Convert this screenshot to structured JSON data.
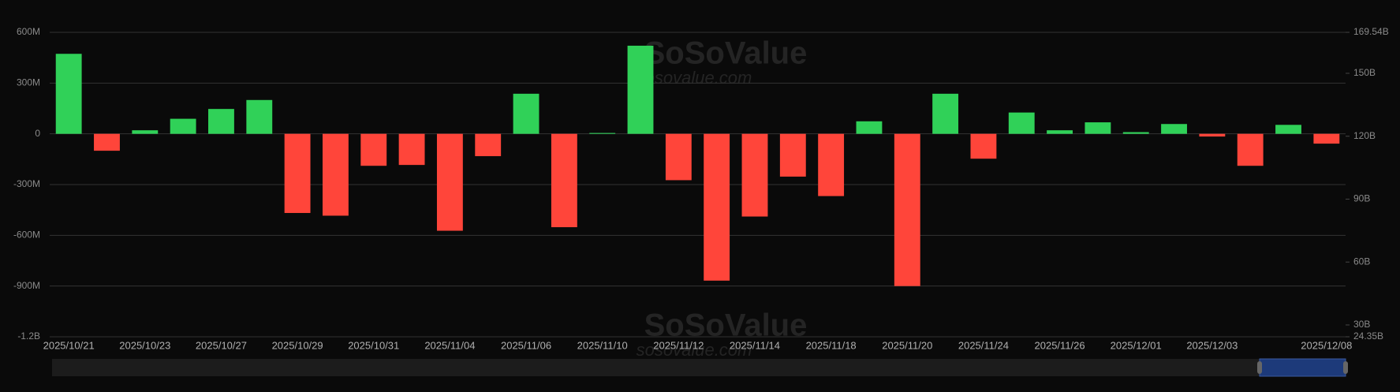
{
  "chart_data": {
    "type": "bar",
    "watermark": {
      "name": "SoSoValue",
      "url": "sosovalue.com"
    },
    "categories": [
      "2025/10/21",
      null,
      "2025/10/23",
      null,
      "2025/10/27",
      null,
      "2025/10/29",
      null,
      "2025/10/31",
      null,
      "2025/11/04",
      null,
      "2025/11/06",
      null,
      "2025/11/10",
      null,
      "2025/11/12",
      null,
      "2025/11/14",
      null,
      "2025/11/18",
      null,
      "2025/11/20",
      null,
      "2025/11/24",
      null,
      "2025/11/26",
      null,
      "2025/12/01",
      null,
      "2025/12/03",
      null,
      null,
      "2025/12/08"
    ],
    "values": [
      473,
      -100,
      21,
      89,
      147,
      200,
      -468,
      -484,
      -189,
      -184,
      -573,
      -132,
      237,
      -552,
      5,
      521,
      -274,
      -868,
      -489,
      -253,
      -368,
      74,
      -900,
      237,
      -147,
      126,
      21,
      68,
      10,
      58,
      -16,
      -189,
      53,
      -58
    ],
    "positive_color": "#30d158",
    "negative_color": "#ff453a",
    "ylim": [
      -1200,
      600
    ],
    "yticks": [
      {
        "value": 600,
        "label": "600M"
      },
      {
        "value": 300,
        "label": "300M"
      },
      0,
      {
        "value": -300,
        "label": "-300M"
      },
      {
        "value": -600,
        "label": "-600M"
      },
      {
        "value": -900,
        "label": "-900M"
      },
      {
        "value": -1200,
        "label": "-1.2B"
      }
    ],
    "y2lim": [
      24.35,
      169.54
    ],
    "y2ticks": [
      {
        "value": 169.54,
        "label": "169.54B"
      },
      {
        "value": 150,
        "label": "150B"
      },
      {
        "value": 120,
        "label": "120B"
      },
      {
        "value": 90,
        "label": "90B"
      },
      {
        "value": 60,
        "label": "60B"
      },
      {
        "value": 30,
        "label": "30B"
      },
      {
        "value": 24.35,
        "label": "24.35B"
      }
    ],
    "grid": true
  }
}
